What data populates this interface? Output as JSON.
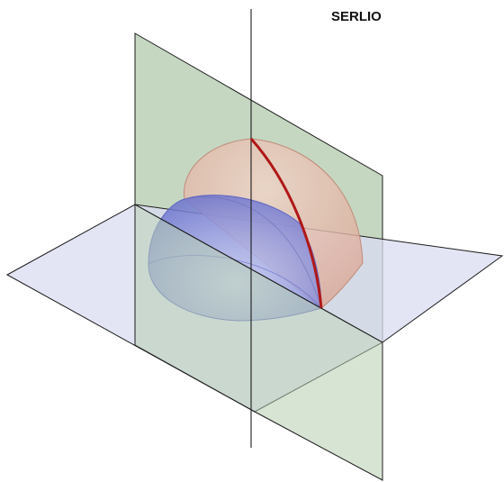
{
  "title": "SERLIO",
  "colors": {
    "background": "#ffffff",
    "vertical_plane": "#b7cdb1",
    "horizontal_plane": "#d4d8ef",
    "inner_hemisphere": "#7f86d6",
    "outer_dome": "#e2b3a4",
    "arc": "#b01818",
    "edges": "#1c1c1c"
  }
}
